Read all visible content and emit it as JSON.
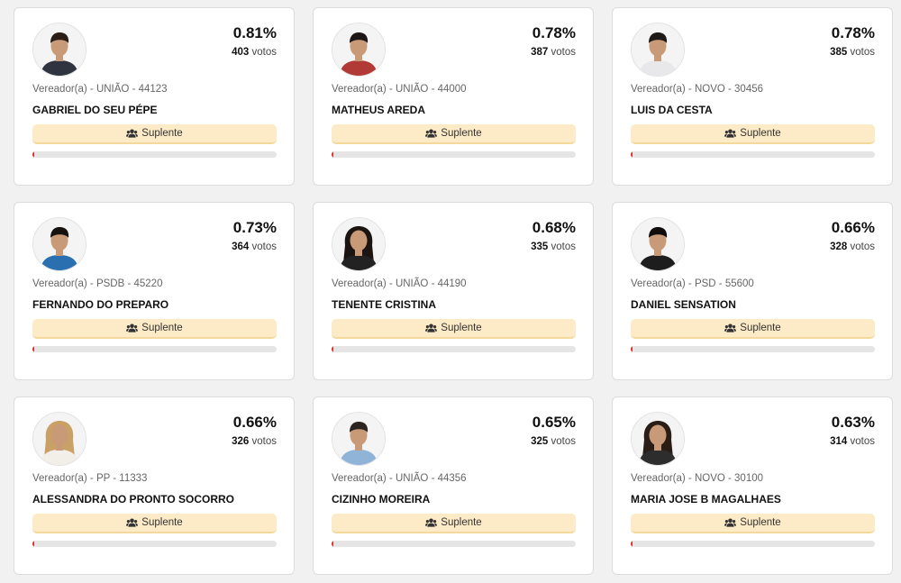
{
  "status_label": "Suplente",
  "colors": {
    "accent": "#d9302c",
    "status_bg": "#fcebc6"
  },
  "candidates": [
    {
      "pct": "0.81%",
      "votes_num": "403",
      "votes_word": "votos",
      "party": "Vereador(a) - UNIÃO - 44123",
      "name": "GABRIEL DO SEU PÉPE",
      "progress": 0.81,
      "avatar_icon": "man-photo-icon",
      "shirt": "#2f3440",
      "hair": "#2a1e17"
    },
    {
      "pct": "0.78%",
      "votes_num": "387",
      "votes_word": "votos",
      "party": "Vereador(a) - UNIÃO - 44000",
      "name": "MATHEUS AREDA",
      "progress": 0.78,
      "avatar_icon": "man-photo-icon",
      "shirt": "#b23a36",
      "hair": "#1c1714"
    },
    {
      "pct": "0.78%",
      "votes_num": "385",
      "votes_word": "votos",
      "party": "Vereador(a) - NOVO - 30456",
      "name": "LUIS DA CESTA",
      "progress": 0.78,
      "avatar_icon": "man-photo-icon",
      "shirt": "#e8e8ea",
      "hair": "#1e1a18"
    },
    {
      "pct": "0.73%",
      "votes_num": "364",
      "votes_word": "votos",
      "party": "Vereador(a) - PSDB - 45220",
      "name": "FERNANDO DO PREPARO",
      "progress": 0.73,
      "avatar_icon": "man-photo-icon",
      "shirt": "#2a6fb0",
      "hair": "#16120f"
    },
    {
      "pct": "0.68%",
      "votes_num": "335",
      "votes_word": "votos",
      "party": "Vereador(a) - UNIÃO - 44190",
      "name": "TENENTE CRISTINA",
      "progress": 0.68,
      "avatar_icon": "woman-photo-icon",
      "shirt": "#222222",
      "hair": "#1b1411"
    },
    {
      "pct": "0.66%",
      "votes_num": "328",
      "votes_word": "votos",
      "party": "Vereador(a) - PSD - 55600",
      "name": "DANIEL SENSATION",
      "progress": 0.66,
      "avatar_icon": "man-photo-icon",
      "shirt": "#1d1d1d",
      "hair": "#0f0c0b"
    },
    {
      "pct": "0.66%",
      "votes_num": "326",
      "votes_word": "votos",
      "party": "Vereador(a) - PP - 11333",
      "name": "ALESSANDRA DO PRONTO SOCORRO",
      "progress": 0.66,
      "avatar_icon": "woman-photo-icon",
      "shirt": "#f2efe8",
      "hair": "#c9a065"
    },
    {
      "pct": "0.65%",
      "votes_num": "325",
      "votes_word": "votos",
      "party": "Vereador(a) - UNIÃO - 44356",
      "name": "CIZINHO MOREIRA",
      "progress": 0.65,
      "avatar_icon": "man-photo-icon",
      "shirt": "#8fb4d8",
      "hair": "#2b241f"
    },
    {
      "pct": "0.63%",
      "votes_num": "314",
      "votes_word": "votos",
      "party": "Vereador(a) - NOVO - 30100",
      "name": "MARIA JOSE B MAGALHAES",
      "progress": 0.63,
      "avatar_icon": "woman-photo-icon",
      "shirt": "#2d2d2d",
      "hair": "#2a1d16"
    }
  ]
}
